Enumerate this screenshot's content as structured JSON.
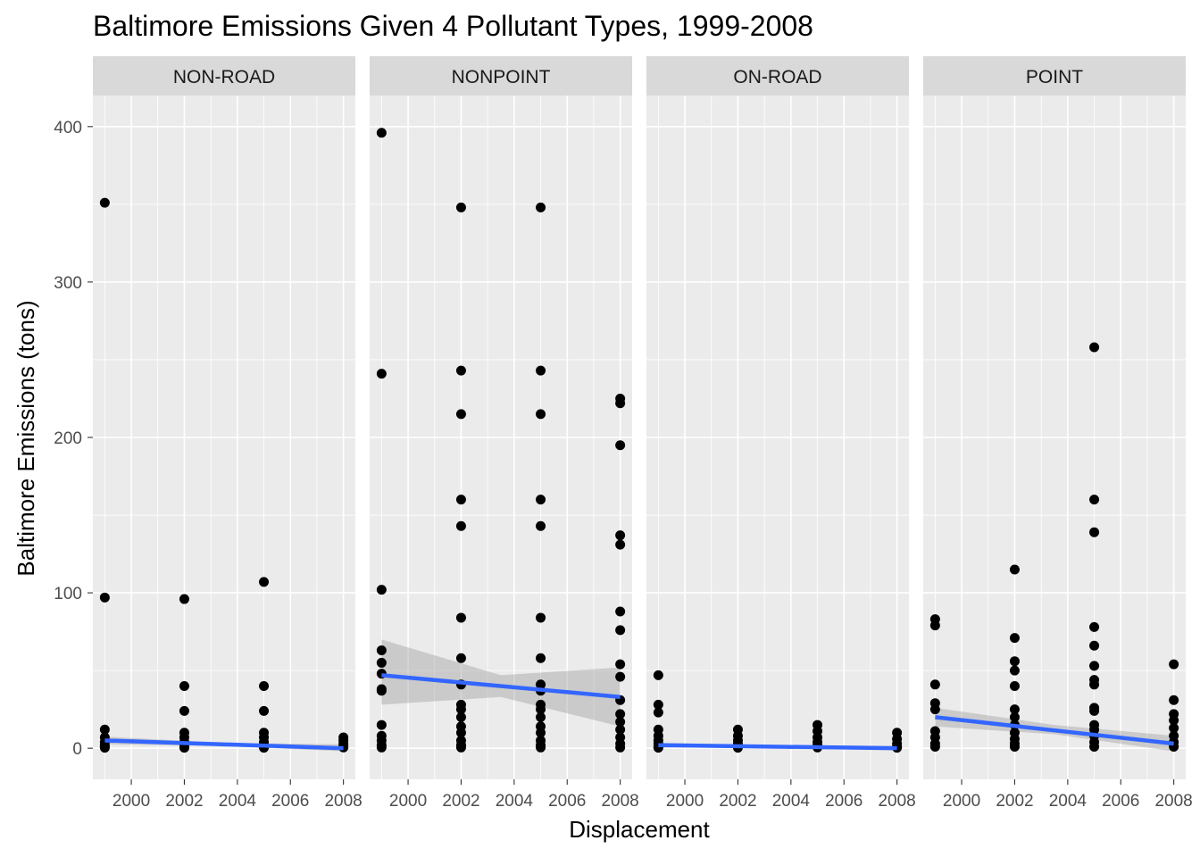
{
  "chart_data": {
    "type": "scatter",
    "title": "Baltimore Emissions Given 4 Pollutant Types, 1999-2008",
    "xlabel": "Displacement",
    "ylabel": "Baltimore Emissions (tons)",
    "xlim": [
      1998.55,
      2008.45
    ],
    "ylim": [
      -20,
      420
    ],
    "x_ticks": [
      2000,
      2002,
      2004,
      2006,
      2008
    ],
    "y_ticks": [
      0,
      100,
      200,
      300,
      400
    ],
    "grid": true,
    "legend": "none",
    "point_color": "#000000",
    "fit_color": "#3366ff",
    "band_color": "#999999",
    "panel_bg": "#ebebeb",
    "strip_bg": "#d9d9d9",
    "facets": [
      {
        "label": "NON-ROAD",
        "points": [
          [
            1999,
            351
          ],
          [
            1999,
            97
          ],
          [
            1999,
            12
          ],
          [
            1999,
            7
          ],
          [
            1999,
            4
          ],
          [
            1999,
            2
          ],
          [
            1999,
            1
          ],
          [
            1999,
            0.3
          ],
          [
            2002,
            96
          ],
          [
            2002,
            40
          ],
          [
            2002,
            24
          ],
          [
            2002,
            10
          ],
          [
            2002,
            7
          ],
          [
            2002,
            4
          ],
          [
            2002,
            2
          ],
          [
            2002,
            1
          ],
          [
            2002,
            0.3
          ],
          [
            2005,
            107
          ],
          [
            2005,
            40
          ],
          [
            2005,
            24
          ],
          [
            2005,
            10
          ],
          [
            2005,
            7
          ],
          [
            2005,
            4
          ],
          [
            2005,
            2
          ],
          [
            2005,
            1
          ],
          [
            2005,
            0.3
          ],
          [
            2008,
            7
          ],
          [
            2008,
            5
          ],
          [
            2008,
            3
          ],
          [
            2008,
            1.5
          ],
          [
            2008,
            0.5
          ]
        ],
        "fit": [
          [
            1999,
            5
          ],
          [
            2008,
            0
          ]
        ],
        "band": [
          [
            1999,
            2.5,
            7.5
          ],
          [
            2003.5,
            1.5,
            3.5
          ],
          [
            2008,
            -2,
            2.5
          ]
        ]
      },
      {
        "label": "NONPOINT",
        "points": [
          [
            1999,
            396
          ],
          [
            1999,
            241
          ],
          [
            1999,
            102
          ],
          [
            1999,
            63
          ],
          [
            1999,
            55
          ],
          [
            1999,
            48
          ],
          [
            1999,
            38
          ],
          [
            1999,
            37
          ],
          [
            1999,
            15
          ],
          [
            1999,
            8
          ],
          [
            1999,
            5
          ],
          [
            1999,
            2
          ],
          [
            1999,
            0.5
          ],
          [
            2002,
            348
          ],
          [
            2002,
            243
          ],
          [
            2002,
            215
          ],
          [
            2002,
            160
          ],
          [
            2002,
            143
          ],
          [
            2002,
            84
          ],
          [
            2002,
            58
          ],
          [
            2002,
            41
          ],
          [
            2002,
            28
          ],
          [
            2002,
            25
          ],
          [
            2002,
            20
          ],
          [
            2002,
            14
          ],
          [
            2002,
            10
          ],
          [
            2002,
            5
          ],
          [
            2002,
            2
          ],
          [
            2002,
            0.5
          ],
          [
            2005,
            348
          ],
          [
            2005,
            243
          ],
          [
            2005,
            215
          ],
          [
            2005,
            160
          ],
          [
            2005,
            143
          ],
          [
            2005,
            84
          ],
          [
            2005,
            58
          ],
          [
            2005,
            41
          ],
          [
            2005,
            37
          ],
          [
            2005,
            28
          ],
          [
            2005,
            25
          ],
          [
            2005,
            20
          ],
          [
            2005,
            14
          ],
          [
            2005,
            10
          ],
          [
            2005,
            5
          ],
          [
            2005,
            2
          ],
          [
            2005,
            0.5
          ],
          [
            2008,
            225
          ],
          [
            2008,
            222
          ],
          [
            2008,
            195
          ],
          [
            2008,
            137
          ],
          [
            2008,
            131
          ],
          [
            2008,
            88
          ],
          [
            2008,
            76
          ],
          [
            2008,
            54
          ],
          [
            2008,
            46
          ],
          [
            2008,
            31
          ],
          [
            2008,
            22
          ],
          [
            2008,
            17
          ],
          [
            2008,
            12
          ],
          [
            2008,
            7
          ],
          [
            2008,
            3
          ],
          [
            2008,
            0.5
          ]
        ],
        "fit": [
          [
            1999,
            47
          ],
          [
            2008,
            33
          ]
        ],
        "band": [
          [
            1999,
            28,
            70
          ],
          [
            2003.5,
            33,
            47
          ],
          [
            2008,
            14,
            52
          ]
        ]
      },
      {
        "label": "ON-ROAD",
        "points": [
          [
            1999,
            47
          ],
          [
            1999,
            28
          ],
          [
            1999,
            23
          ],
          [
            1999,
            12
          ],
          [
            1999,
            8
          ],
          [
            1999,
            5
          ],
          [
            1999,
            3
          ],
          [
            1999,
            1
          ],
          [
            1999,
            0.3
          ],
          [
            2002,
            12
          ],
          [
            2002,
            8
          ],
          [
            2002,
            5
          ],
          [
            2002,
            3
          ],
          [
            2002,
            1
          ],
          [
            2002,
            0.3
          ],
          [
            2005,
            15
          ],
          [
            2005,
            11
          ],
          [
            2005,
            7
          ],
          [
            2005,
            4
          ],
          [
            2005,
            2
          ],
          [
            2005,
            0.5
          ],
          [
            2008,
            10
          ],
          [
            2008,
            6
          ],
          [
            2008,
            3
          ],
          [
            2008,
            1
          ],
          [
            2008,
            0.3
          ]
        ],
        "fit": [
          [
            1999,
            2
          ],
          [
            2008,
            0
          ]
        ],
        "band": [
          [
            1999,
            0.5,
            3.5
          ],
          [
            2003.5,
            0.3,
            1.8
          ],
          [
            2008,
            -1.5,
            1.5
          ]
        ]
      },
      {
        "label": "POINT",
        "points": [
          [
            1999,
            83
          ],
          [
            1999,
            79
          ],
          [
            1999,
            41
          ],
          [
            1999,
            29
          ],
          [
            1999,
            25
          ],
          [
            1999,
            11
          ],
          [
            1999,
            7
          ],
          [
            1999,
            3
          ],
          [
            1999,
            1
          ],
          [
            2002,
            115
          ],
          [
            2002,
            71
          ],
          [
            2002,
            56
          ],
          [
            2002,
            50
          ],
          [
            2002,
            40
          ],
          [
            2002,
            25
          ],
          [
            2002,
            20
          ],
          [
            2002,
            15
          ],
          [
            2002,
            10
          ],
          [
            2002,
            6
          ],
          [
            2002,
            3
          ],
          [
            2002,
            1
          ],
          [
            2005,
            258
          ],
          [
            2005,
            160
          ],
          [
            2005,
            139
          ],
          [
            2005,
            78
          ],
          [
            2005,
            66
          ],
          [
            2005,
            53
          ],
          [
            2005,
            44
          ],
          [
            2005,
            41
          ],
          [
            2005,
            26
          ],
          [
            2005,
            24
          ],
          [
            2005,
            15
          ],
          [
            2005,
            12
          ],
          [
            2005,
            8
          ],
          [
            2005,
            4
          ],
          [
            2005,
            1
          ],
          [
            2008,
            54
          ],
          [
            2008,
            31
          ],
          [
            2008,
            22
          ],
          [
            2008,
            18
          ],
          [
            2008,
            13
          ],
          [
            2008,
            8
          ],
          [
            2008,
            4
          ],
          [
            2008,
            1
          ]
        ],
        "fit": [
          [
            1999,
            20
          ],
          [
            2008,
            3
          ]
        ],
        "band": [
          [
            1999,
            14,
            26
          ],
          [
            2003.5,
            9,
            15
          ],
          [
            2008,
            -2,
            8
          ]
        ]
      }
    ]
  }
}
